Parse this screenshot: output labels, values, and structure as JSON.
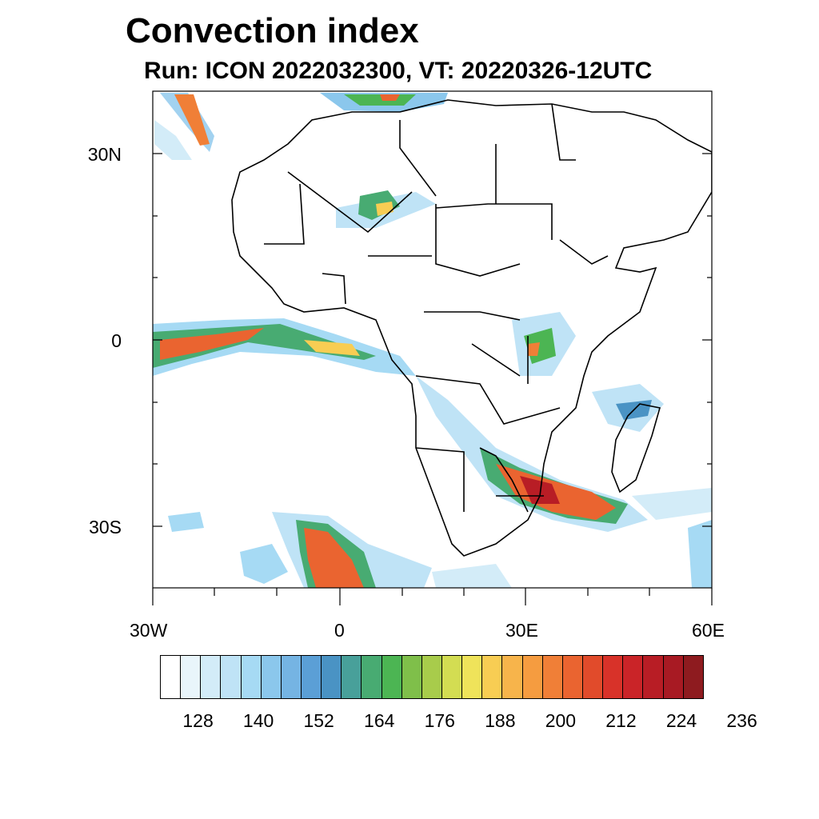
{
  "title": "Convection index",
  "subtitle": "Run: ICON 2022032300,  VT: 20220326-12UTC",
  "map": {
    "extent": {
      "lon_min": -30,
      "lon_max": 60,
      "lat_min": -40,
      "lat_max": 40
    },
    "y_axis_labels": [
      "30N",
      "0",
      "30S"
    ],
    "x_axis_labels": [
      "30W",
      "0",
      "30E",
      "60E"
    ]
  },
  "colorbar": {
    "colors": [
      "#ffffff",
      "#e9f5fb",
      "#d3ecf8",
      "#bfe3f6",
      "#a6daf4",
      "#8bc7ec",
      "#75b4e3",
      "#5b9fd6",
      "#4a93c4",
      "#48a09a",
      "#48ab72",
      "#4cb553",
      "#7fbf4a",
      "#a8cc4b",
      "#d3dd52",
      "#efe35a",
      "#f8cd53",
      "#f7b44b",
      "#f59c40",
      "#f07f37",
      "#ea6430",
      "#e14b2b",
      "#d83229",
      "#ca2428",
      "#b81d25",
      "#a81a23",
      "#8e1b1f"
    ],
    "labels": [
      "128",
      "140",
      "152",
      "164",
      "176",
      "188",
      "200",
      "212",
      "224",
      "236"
    ]
  },
  "colors": {
    "land_line": "#000000",
    "background": "#ffffff"
  }
}
